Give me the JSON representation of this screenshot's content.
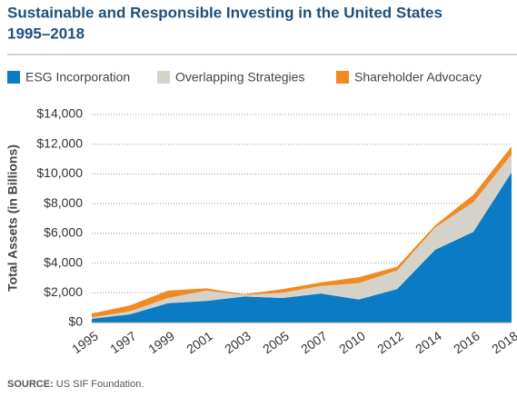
{
  "chart_data": {
    "type": "stacked-area",
    "title": "Sustainable and Responsible Investing in the United States",
    "subtitle": "1995–2018",
    "y_label": "Total Assets (in Billions)",
    "source_label": "SOURCE:",
    "source": "US SIF Foundation.",
    "categories": [
      "1995",
      "1997",
      "1999",
      "2001",
      "2003",
      "2005",
      "2007",
      "2010",
      "2012",
      "2014",
      "2016",
      "2018"
    ],
    "series": [
      {
        "name": "ESG Incorporation",
        "color": "#0a7bc4",
        "values": [
          250,
          550,
          1300,
          1450,
          1750,
          1650,
          1950,
          1550,
          2250,
          4900,
          6100,
          10100
        ]
      },
      {
        "name": "Overlapping Strategies",
        "color": "#d5d3c9",
        "values": [
          100,
          200,
          350,
          700,
          100,
          350,
          500,
          1100,
          1250,
          1500,
          2000,
          1200
        ]
      },
      {
        "name": "Shareholder Advocacy",
        "color": "#f28a24",
        "values": [
          250,
          400,
          500,
          150,
          50,
          250,
          250,
          400,
          250,
          150,
          500,
          550
        ]
      }
    ],
    "ylim": [
      0,
      14000
    ],
    "yticks": [
      {
        "value": 0,
        "label": "$0"
      },
      {
        "value": 2000,
        "label": "$2,000"
      },
      {
        "value": 4000,
        "label": "$4,000"
      },
      {
        "value": 6000,
        "label": "$6,000"
      },
      {
        "value": 8000,
        "label": "$8,000"
      },
      {
        "value": 10000,
        "label": "$10,000"
      },
      {
        "value": 12000,
        "label": "$12,000"
      },
      {
        "value": 14000,
        "label": "$14,000"
      }
    ],
    "grid": true
  }
}
